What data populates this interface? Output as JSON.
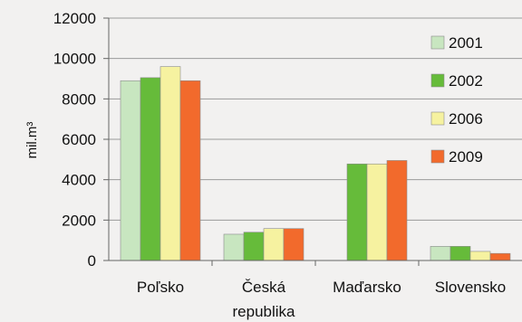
{
  "chart_data": {
    "type": "bar",
    "categories": [
      "Poľsko",
      "Česká republika",
      "Maďarsko",
      "Slovensko"
    ],
    "category_label_lines": [
      [
        "Poľsko"
      ],
      [
        "Česká",
        "republika"
      ],
      [
        "Maďarsko"
      ],
      [
        "Slovensko"
      ]
    ],
    "series": [
      {
        "name": "2001",
        "color": "#c8e6c0",
        "values": [
          8900,
          1300,
          null,
          700
        ]
      },
      {
        "name": "2002",
        "color": "#66bb3a",
        "values": [
          9050,
          1400,
          4780,
          700
        ]
      },
      {
        "name": "2006",
        "color": "#f6f2a0",
        "values": [
          9600,
          1580,
          4780,
          450
        ]
      },
      {
        "name": "2009",
        "color": "#f26a2c",
        "values": [
          8900,
          1580,
          4950,
          350
        ]
      }
    ],
    "ylabel": "mil.m³",
    "ylim": [
      0,
      12000
    ],
    "yticks": [
      0,
      2000,
      4000,
      6000,
      8000,
      10000,
      12000
    ],
    "grid": true,
    "legend_position": "right"
  }
}
